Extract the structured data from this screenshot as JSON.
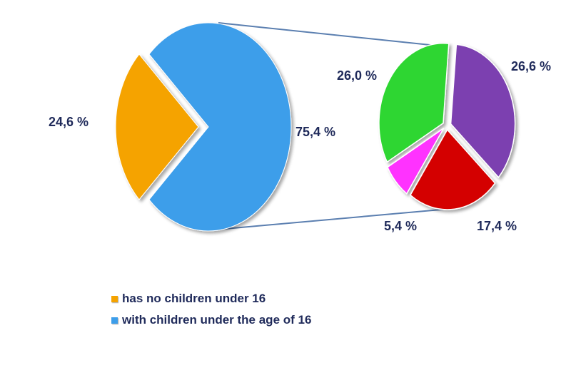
{
  "chart_data": [
    {
      "type": "pie",
      "categories": [
        "has no children under 16",
        "with children under the age of 16"
      ],
      "values": [
        24.6,
        75.4
      ],
      "labels": [
        "24,6 %",
        "75,4 %"
      ],
      "colors": [
        "#f5a300",
        "#3d9eea"
      ]
    },
    {
      "type": "pie",
      "values": [
        26.6,
        17.4,
        5.4,
        26.0
      ],
      "labels": [
        "26,6 %",
        "17,4 %",
        "5,4 %",
        "26,0 %"
      ],
      "colors": [
        "#7b3fb0",
        "#d40000",
        "#ff33ff",
        "#2fd633"
      ]
    }
  ],
  "legend": {
    "items": [
      {
        "label": "has no children under 16",
        "color": "#f5a300"
      },
      {
        "label": "with children under the age of 16",
        "color": "#3d9eea"
      }
    ]
  }
}
